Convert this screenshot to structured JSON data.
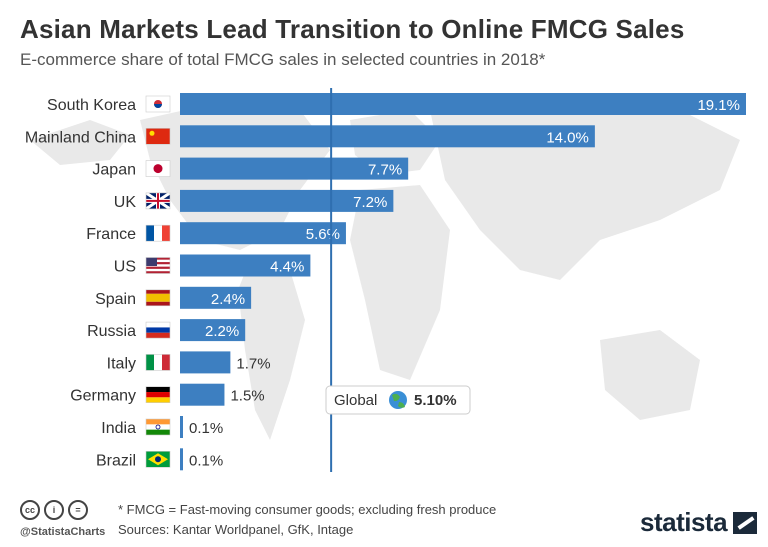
{
  "header": {
    "title": "Asian Markets Lead Transition to Online FMCG Sales",
    "subtitle": "E-commerce share of total FMCG sales in selected countries in 2018*"
  },
  "colors": {
    "bar": "#3d7fc1",
    "map": "#e9e9e9",
    "global_line": "#2f6fb0"
  },
  "chart_data": {
    "type": "bar",
    "orientation": "horizontal",
    "title": "Asian Markets Lead Transition to Online FMCG Sales",
    "subtitle": "E-commerce share of total FMCG sales in selected countries in 2018*",
    "unit": "%",
    "categories": [
      "South Korea",
      "Mainland China",
      "Japan",
      "UK",
      "France",
      "US",
      "Spain",
      "Russia",
      "Italy",
      "Germany",
      "India",
      "Brazil"
    ],
    "values": [
      19.1,
      14.0,
      7.7,
      7.2,
      5.6,
      4.4,
      2.4,
      2.2,
      1.7,
      1.5,
      0.1,
      0.1
    ],
    "value_labels": [
      "19.1%",
      "14.0%",
      "7.7%",
      "7.2%",
      "5.6%",
      "4.4%",
      "2.4%",
      "2.2%",
      "1.7%",
      "1.5%",
      "0.1%",
      "0.1%"
    ],
    "flags": [
      "south-korea-flag",
      "china-flag",
      "japan-flag",
      "uk-flag",
      "france-flag",
      "us-flag",
      "spain-flag",
      "russia-flag",
      "italy-flag",
      "germany-flag",
      "india-flag",
      "brazil-flag"
    ],
    "reference_line": {
      "label": "Global",
      "value": 5.1,
      "value_label": "5.10%",
      "icon": "globe-icon"
    },
    "xlim": [
      0,
      19.1
    ],
    "grid": false,
    "legend": "none"
  },
  "footer": {
    "note": "* FMCG = Fast-moving consumer goods; excluding fresh produce",
    "source": "Sources: Kantar Worldpanel, GfK, Intage",
    "handle": "@StatistaCharts",
    "brand": "statista",
    "license_icons": [
      "cc-icon",
      "by-icon",
      "nd-icon"
    ],
    "license_glyphs": [
      "cc",
      "i",
      "="
    ]
  }
}
